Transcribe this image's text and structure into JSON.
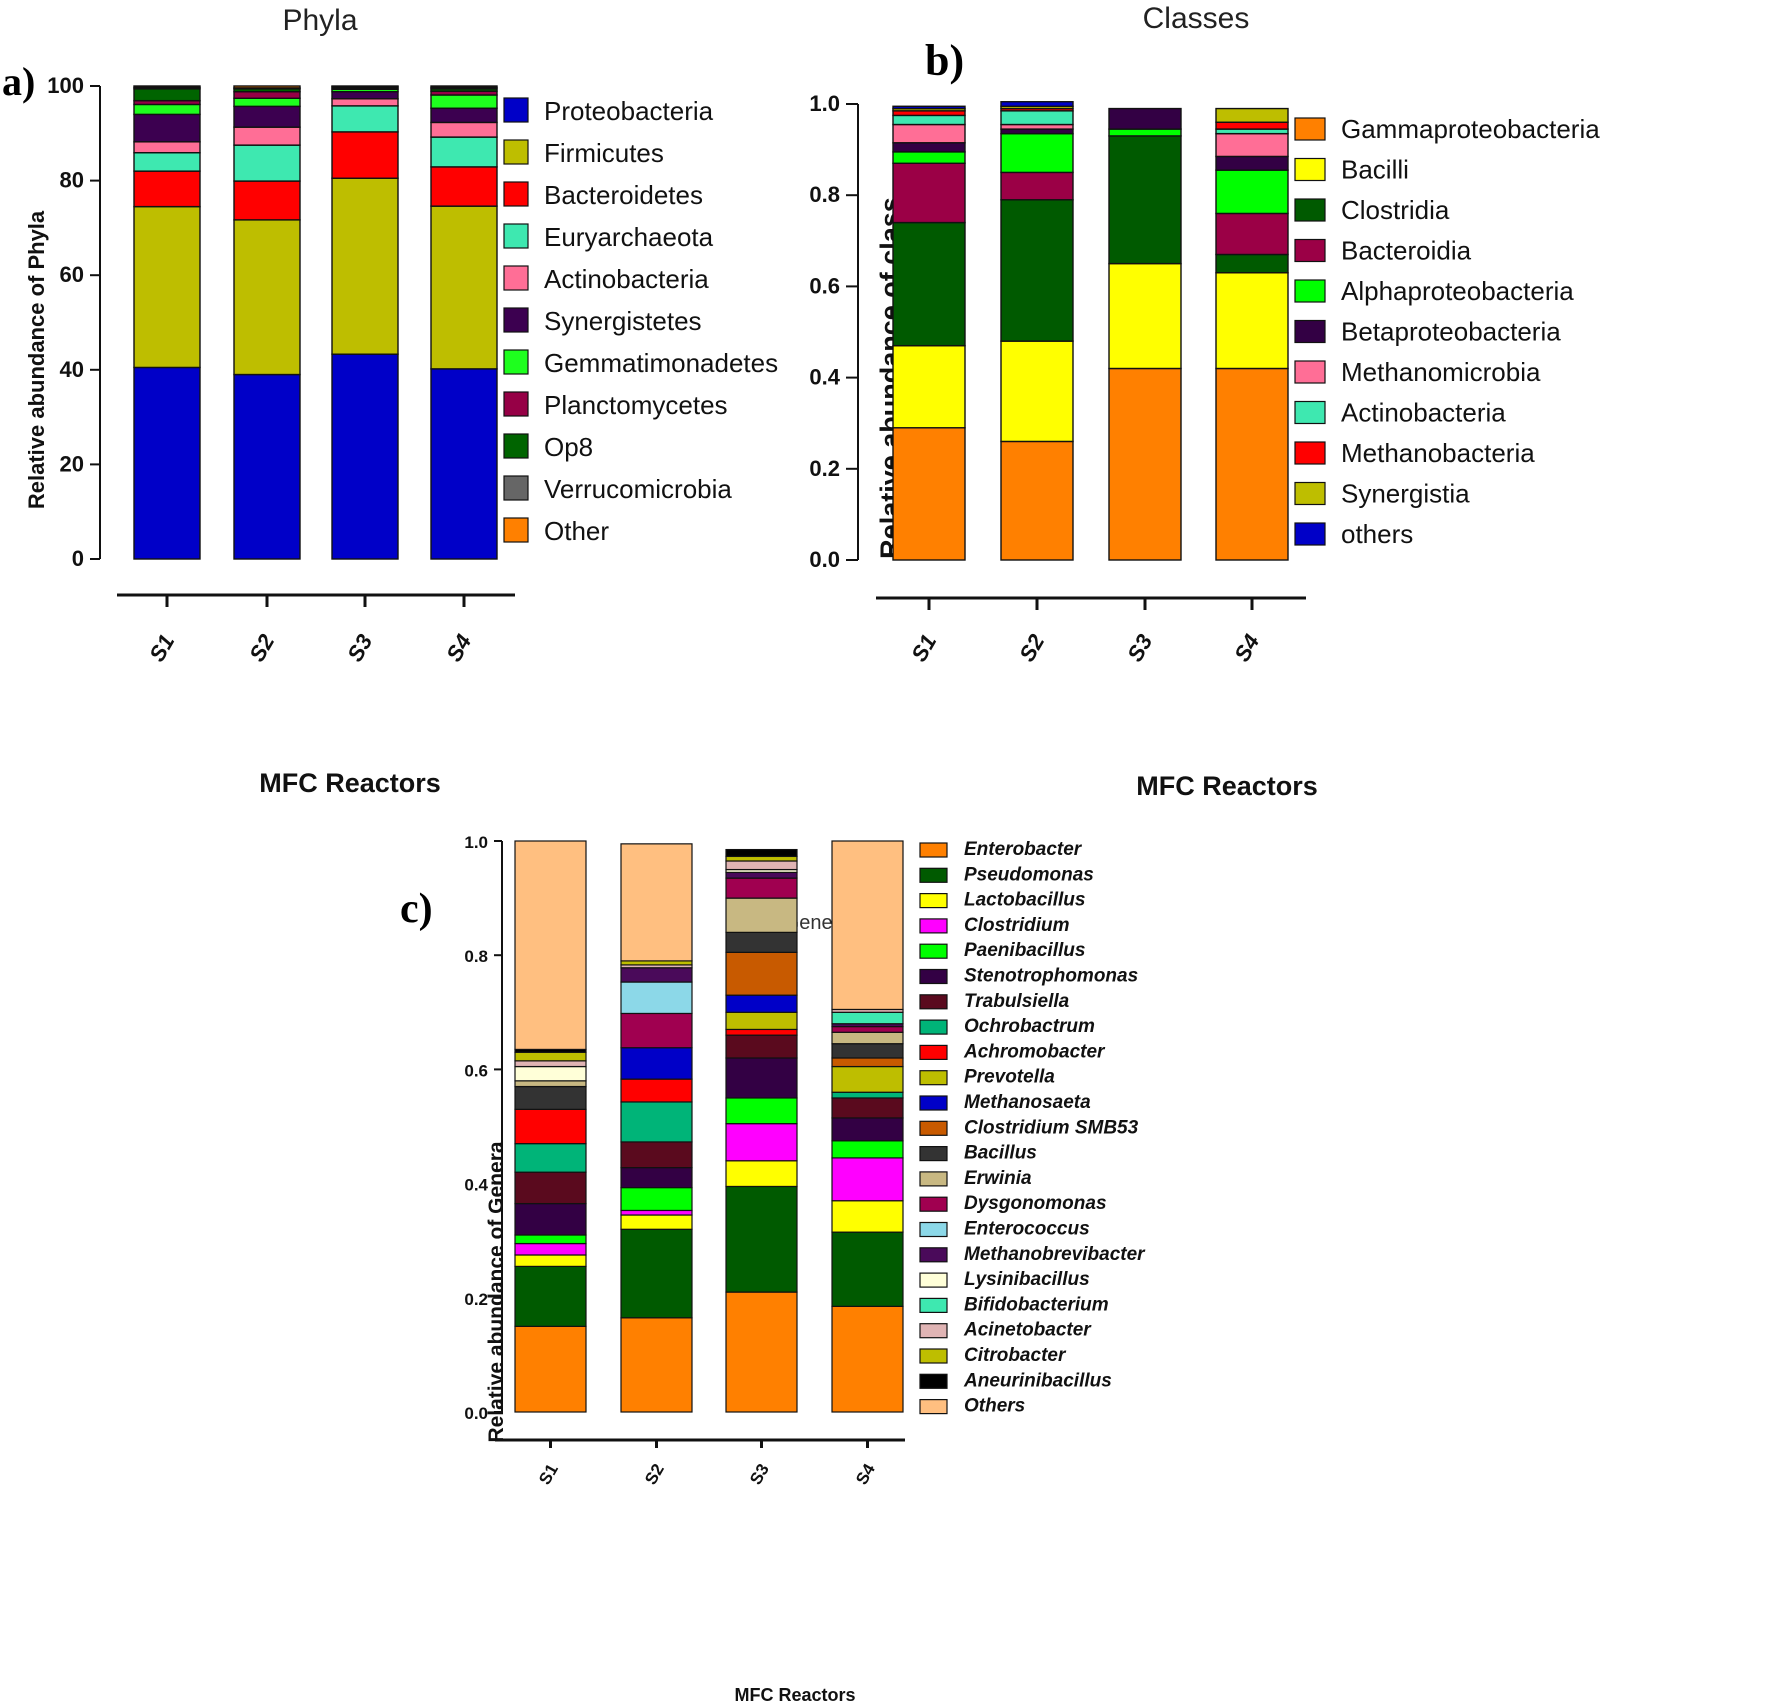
{
  "chart_data": [
    {
      "panel": "a)",
      "type": "bar",
      "stacked": true,
      "title": "Phyla",
      "xlabel": "MFC Reactors",
      "ylabel": "Relative abundance of Phyla",
      "ylim": [
        0,
        100
      ],
      "yticks": [
        "0",
        "20",
        "40",
        "60",
        "80",
        "100"
      ],
      "categories": [
        "S1",
        "S2",
        "S3",
        "S4"
      ],
      "legend_position": "right",
      "series": [
        {
          "name": "Proteobacteria",
          "color": "#0000c8",
          "values": [
            40.5,
            39.0,
            43.3,
            40.2
          ]
        },
        {
          "name": "Firmicutes",
          "color": "#bebe00",
          "values": [
            34.0,
            32.7,
            37.2,
            34.4
          ]
        },
        {
          "name": "Bacteroidetes",
          "color": "#ff0000",
          "values": [
            7.5,
            8.2,
            9.8,
            8.3
          ]
        },
        {
          "name": "Euryarchaeota",
          "color": "#3ee8b0",
          "values": [
            3.9,
            7.6,
            5.5,
            6.3
          ]
        },
        {
          "name": "Actinobacteria",
          "color": "#ff6e96",
          "values": [
            2.3,
            3.8,
            1.5,
            3.1
          ]
        },
        {
          "name": "Synergistetes",
          "color": "#3c0050",
          "values": [
            5.8,
            4.4,
            1.5,
            3.0
          ]
        },
        {
          "name": "Gemmatimonadetes",
          "color": "#1eff1e",
          "values": [
            2.1,
            1.7,
            0.5,
            2.8
          ]
        },
        {
          "name": "Planctomycetes",
          "color": "#960046",
          "values": [
            0.8,
            1.4,
            0.3,
            0.8
          ]
        },
        {
          "name": "Op8",
          "color": "#006400",
          "values": [
            2.5,
            0.6,
            0.3,
            0.5
          ]
        },
        {
          "name": "Verrucomicrobia",
          "color": "#666666",
          "values": [
            0.3,
            0.2,
            0.1,
            0.3
          ]
        },
        {
          "name": "Other",
          "color": "#ff8000",
          "values": [
            0.3,
            0.4,
            0.0,
            0.3
          ]
        }
      ]
    },
    {
      "panel": "b)",
      "type": "bar",
      "stacked": true,
      "title": "Classes",
      "xlabel": "MFC Reactors",
      "ylabel": "Relative abundance of class",
      "ylim": [
        0,
        1
      ],
      "yticks": [
        "0.0",
        "0.2",
        "0.4",
        "0.6",
        "0.8",
        "1.0"
      ],
      "categories": [
        "S1",
        "S2",
        "S3",
        "S4"
      ],
      "legend_position": "right",
      "series": [
        {
          "name": "Gammaproteobacteria",
          "color": "#ff8000",
          "values": [
            0.29,
            0.26,
            0.42,
            0.42
          ]
        },
        {
          "name": "Bacilli",
          "color": "#ffff00",
          "values": [
            0.18,
            0.22,
            0.23,
            0.21
          ]
        },
        {
          "name": "Clostridia",
          "color": "#005a00",
          "values": [
            0.27,
            0.31,
            0.28,
            0.04
          ]
        },
        {
          "name": "Bacteroidia",
          "color": "#9b0046",
          "values": [
            0.13,
            0.06,
            0.0,
            0.09
          ]
        },
        {
          "name": "Alphaproteobacteria",
          "color": "#00ff00",
          "values": [
            0.025,
            0.085,
            0.015,
            0.095
          ]
        },
        {
          "name": "Betaproteobacteria",
          "color": "#330044",
          "values": [
            0.02,
            0.01,
            0.045,
            0.03
          ]
        },
        {
          "name": "Methanomicrobia",
          "color": "#ff6e96",
          "values": [
            0.04,
            0.01,
            0.0,
            0.05
          ]
        },
        {
          "name": "Actinobacteria",
          "color": "#3ee8b0",
          "values": [
            0.02,
            0.03,
            0.0,
            0.01
          ]
        },
        {
          "name": "Methanobacteria",
          "color": "#ff0000",
          "values": [
            0.01,
            0.005,
            0.0,
            0.015
          ]
        },
        {
          "name": "Synergistia",
          "color": "#bebe00",
          "values": [
            0.005,
            0.005,
            0.0,
            0.03
          ]
        },
        {
          "name": "others",
          "color": "#0000c8",
          "values": [
            0.005,
            0.01,
            0.0,
            0.0
          ]
        }
      ]
    },
    {
      "panel": "c)",
      "type": "bar",
      "stacked": true,
      "title": "Genera",
      "xlabel": "MFC Reactors",
      "ylabel": "Relative abundance of Genera",
      "ylim": [
        0,
        1
      ],
      "yticks": [
        "0.0",
        "0.2",
        "0.4",
        "0.6",
        "0.8",
        "1.0"
      ],
      "categories": [
        "S1",
        "S2",
        "S3",
        "S4"
      ],
      "legend_position": "right",
      "series": [
        {
          "name": "Enterobacter",
          "color": "#ff8000",
          "values": [
            0.15,
            0.165,
            0.21,
            0.185
          ]
        },
        {
          "name": "Pseudomonas",
          "color": "#005a00",
          "values": [
            0.105,
            0.155,
            0.185,
            0.13
          ]
        },
        {
          "name": "Lactobacillus",
          "color": "#ffff00",
          "values": [
            0.02,
            0.025,
            0.045,
            0.055
          ]
        },
        {
          "name": "Clostridium",
          "color": "#ff00ff",
          "values": [
            0.02,
            0.008,
            0.065,
            0.075
          ]
        },
        {
          "name": "Paenibacillus",
          "color": "#00ff00",
          "values": [
            0.015,
            0.04,
            0.045,
            0.03
          ]
        },
        {
          "name": "Stenotrophomonas",
          "color": "#330044",
          "values": [
            0.055,
            0.035,
            0.07,
            0.04
          ]
        },
        {
          "name": "Trabulsiella",
          "color": "#5a0a1e",
          "values": [
            0.055,
            0.045,
            0.04,
            0.035
          ]
        },
        {
          "name": "Ochrobactrum",
          "color": "#00b478",
          "values": [
            0.05,
            0.07,
            0.0,
            0.01
          ]
        },
        {
          "name": "Achromobacter",
          "color": "#ff0000",
          "values": [
            0.06,
            0.04,
            0.01,
            0.0
          ]
        },
        {
          "name": "Prevotella",
          "color": "#bebe00",
          "values": [
            0.0,
            0.0,
            0.03,
            0.045
          ]
        },
        {
          "name": "Methanosaeta",
          "color": "#0000c8",
          "values": [
            0.0,
            0.055,
            0.03,
            0.0
          ]
        },
        {
          "name": "Clostridium SMB53",
          "color": "#c85a00",
          "values": [
            0.0,
            0.0,
            0.075,
            0.015
          ]
        },
        {
          "name": "Bacillus",
          "color": "#333333",
          "values": [
            0.04,
            0.0,
            0.035,
            0.025
          ]
        },
        {
          "name": "Erwinia",
          "color": "#c8b882",
          "values": [
            0.01,
            0.0,
            0.06,
            0.02
          ]
        },
        {
          "name": "Dysgonomonas",
          "color": "#a00050",
          "values": [
            0.0,
            0.06,
            0.035,
            0.01
          ]
        },
        {
          "name": "Enterococcus",
          "color": "#8cd8e8",
          "values": [
            0.0,
            0.055,
            0.0,
            0.0
          ]
        },
        {
          "name": "Methanobrevibacter",
          "color": "#4a0a5a",
          "values": [
            0.0,
            0.025,
            0.01,
            0.005
          ]
        },
        {
          "name": "Lysinibacillus",
          "color": "#ffffd8",
          "values": [
            0.025,
            0.0,
            0.005,
            0.0
          ]
        },
        {
          "name": "Bifidobacterium",
          "color": "#3ee8b0",
          "values": [
            0.0,
            0.0,
            0.0,
            0.02
          ]
        },
        {
          "name": "Acinetobacter",
          "color": "#e0b4b4",
          "values": [
            0.01,
            0.005,
            0.015,
            0.005
          ]
        },
        {
          "name": "Citrobacter",
          "color": "#bebe00",
          "values": [
            0.015,
            0.007,
            0.008,
            0.0
          ]
        },
        {
          "name": "Aneurinibacillus",
          "color": "#000000",
          "values": [
            0.005,
            0.0,
            0.012,
            0.0
          ]
        },
        {
          "name": "Others",
          "color": "#ffbf80",
          "values": [
            0.365,
            0.205,
            0.0,
            0.295
          ]
        }
      ]
    }
  ]
}
